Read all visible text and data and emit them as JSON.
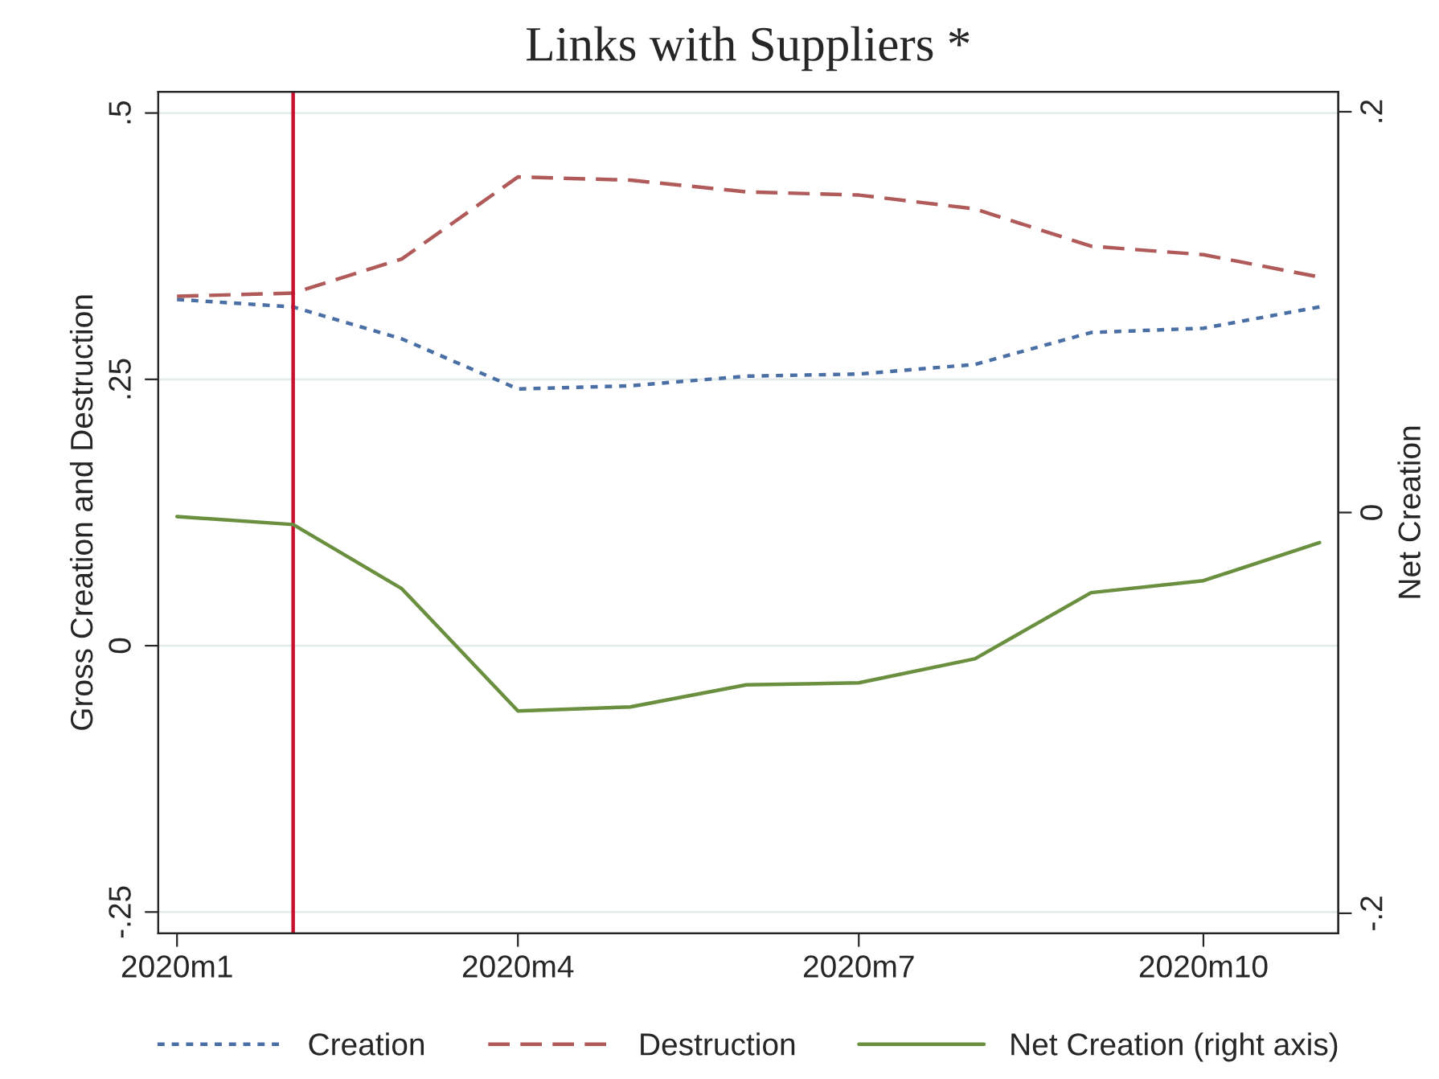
{
  "chart_data": {
    "type": "line",
    "title": "Links with Suppliers *",
    "ylabel": "Gross Creation and Destruction",
    "y2label": "Net Creation",
    "x": [
      "2020-01",
      "2020-02",
      "2020-03",
      "2020-04",
      "2020-05",
      "2020-06",
      "2020-07",
      "2020-08",
      "2020-09",
      "2020-10",
      "2020-11"
    ],
    "series": [
      {
        "name": "Creation",
        "color": "#4a6fa5",
        "line_style": "dotted",
        "values": [
          0.325,
          0.318,
          0.288,
          0.241,
          0.244,
          0.253,
          0.255,
          0.264,
          0.294,
          0.298,
          0.318
        ]
      },
      {
        "name": "Destruction",
        "color": "#b05a5a",
        "line_style": "dashed",
        "values": [
          0.328,
          0.331,
          0.363,
          0.44,
          0.437,
          0.426,
          0.423,
          0.41,
          0.375,
          0.367,
          0.346
        ]
      },
      {
        "name": "Net Creation (right axis)",
        "color": "#6a8f3f",
        "line_style": "solid",
        "axis": "y2",
        "values": [
          -0.002,
          -0.006,
          -0.038,
          -0.099,
          -0.097,
          -0.086,
          -0.085,
          -0.073,
          -0.04,
          -0.034,
          -0.015
        ]
      }
    ],
    "xlim": [
      "2019-12-27",
      "2020-11-06"
    ],
    "xticks": [
      {
        "value": "2020-01",
        "label": "2020m1"
      },
      {
        "value": "2020-04",
        "label": "2020m4"
      },
      {
        "value": "2020-07",
        "label": "2020m7"
      },
      {
        "value": "2020-10",
        "label": "2020m10"
      }
    ],
    "ylim": [
      -0.27,
      0.52
    ],
    "yticks": [
      {
        "value": -0.25,
        "label": "-.25"
      },
      {
        "value": 0,
        "label": "0"
      },
      {
        "value": 0.25,
        "label": ".25"
      },
      {
        "value": 0.5,
        "label": ".5"
      }
    ],
    "y2lim": [
      -0.21,
      0.21
    ],
    "y2ticks": [
      {
        "value": -0.2,
        "label": "-.2"
      },
      {
        "value": 0,
        "label": "0"
      },
      {
        "value": 0.2,
        "label": ".2"
      }
    ],
    "ref_lines": [
      {
        "axis": "x",
        "value": "2020-02",
        "color": "#c8102e"
      }
    ],
    "grid": "y",
    "legend": "bottom"
  }
}
